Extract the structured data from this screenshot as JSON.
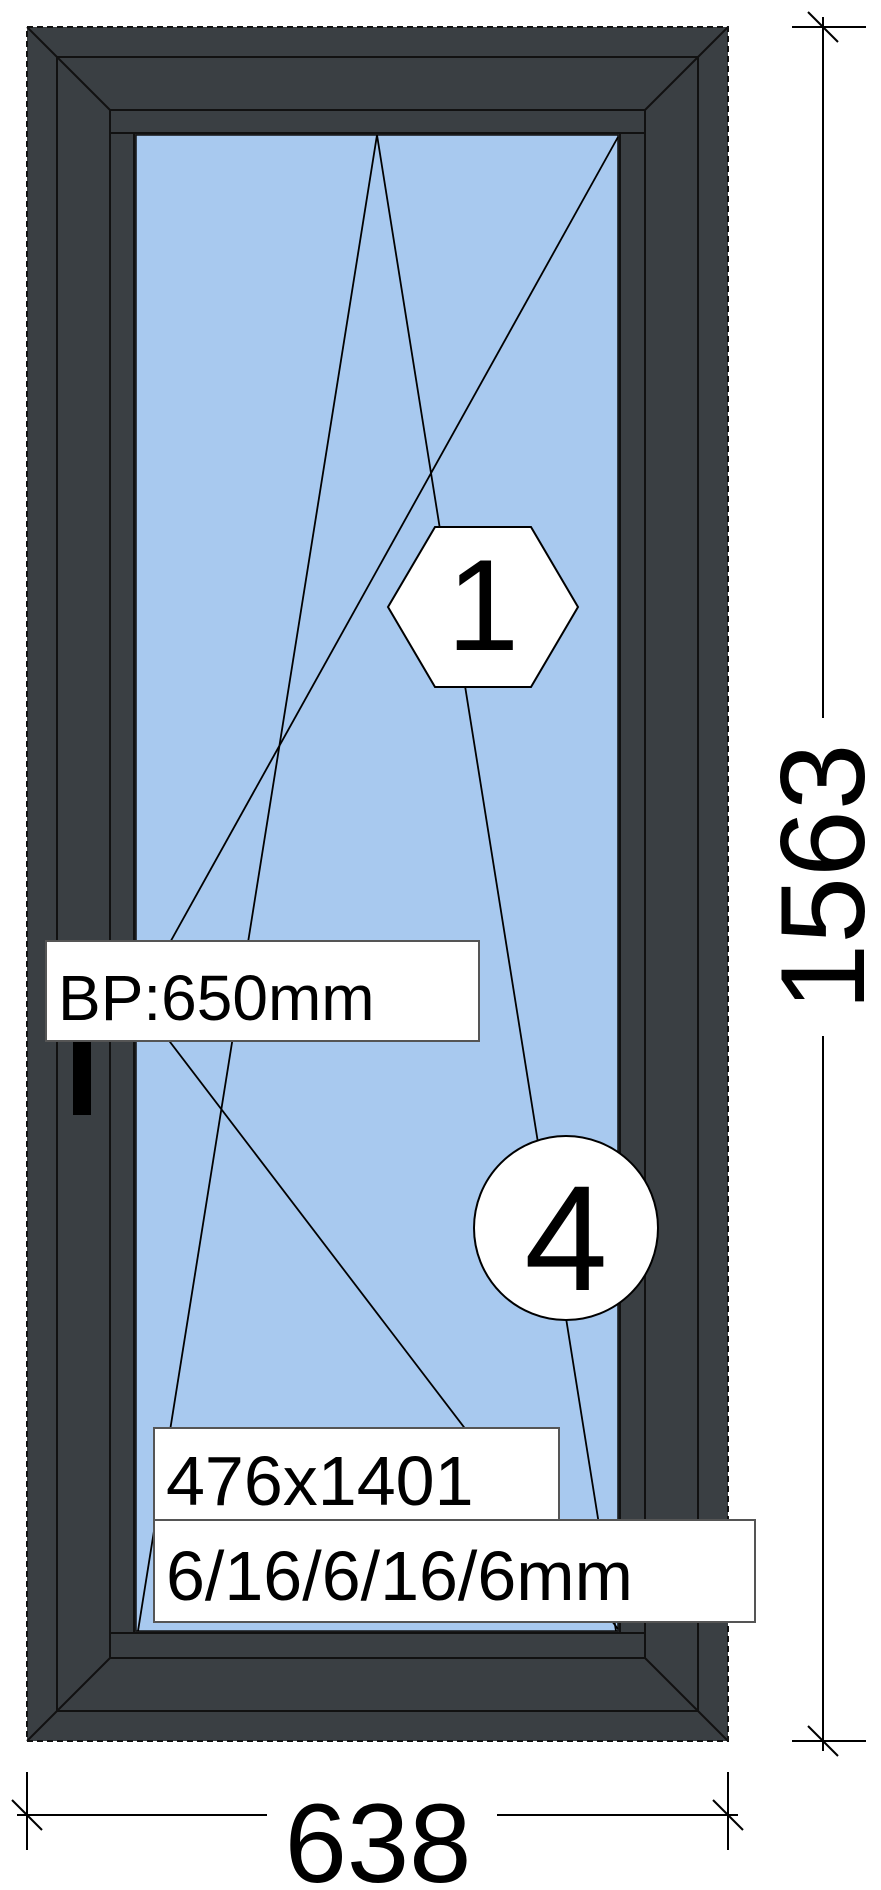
{
  "window": {
    "frame_color": "#3a3f43",
    "glass_color": "#a8c9ef",
    "line_color": "#000000"
  },
  "labels": {
    "handle_height": "BP:650mm",
    "glass_size": "476x1401",
    "glass_spec": "6/16/6/16/6mm",
    "sash_number": "1",
    "opening_type": "4"
  },
  "dimensions": {
    "width": "638",
    "height": "1563"
  }
}
